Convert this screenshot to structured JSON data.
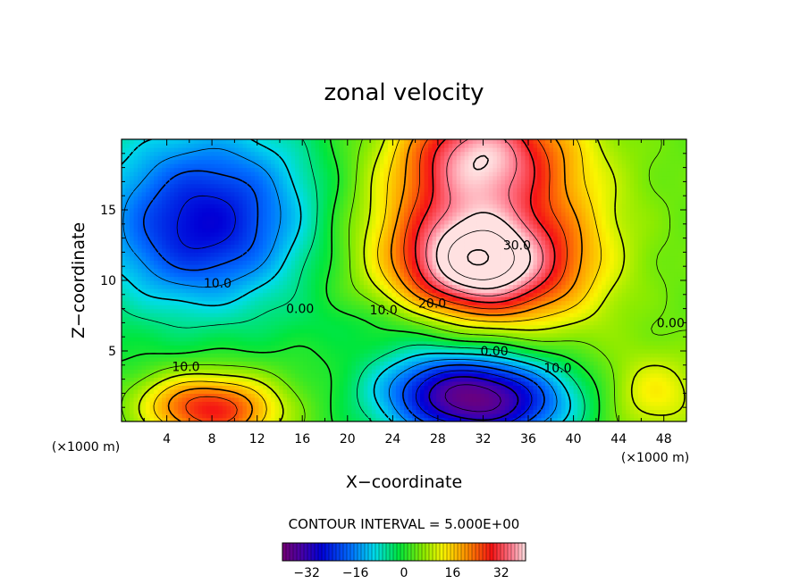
{
  "chart_data": {
    "type": "heatmap",
    "title": "zonal velocity",
    "xlabel": "X−coordinate",
    "ylabel": "Z−coordinate",
    "x_unit": "(×1000 m)",
    "y_unit": "(×1000 m)",
    "xlim": [
      0,
      50
    ],
    "ylim": [
      0,
      20
    ],
    "x_ticks": [
      4,
      8,
      12,
      16,
      20,
      24,
      28,
      32,
      36,
      40,
      44,
      48
    ],
    "y_ticks": [
      5,
      10,
      15
    ],
    "contour_interval_text": "CONTOUR INTERVAL = 5.000E+00",
    "contour_interval": 5.0,
    "colorbar": {
      "range": [
        -40,
        40
      ],
      "ticks": [
        -32,
        -16,
        0,
        16,
        32
      ],
      "tick_labels": [
        "−32",
        "−16",
        "0",
        "16",
        "32"
      ]
    },
    "contour_labels": [
      {
        "text": "10.0",
        "x": 8.5,
        "y": 9.8
      },
      {
        "text": "0.00",
        "x": 15.8,
        "y": 8.0
      },
      {
        "text": "10.0",
        "x": 23.2,
        "y": 7.9
      },
      {
        "text": "20.0",
        "x": 27.5,
        "y": 8.4
      },
      {
        "text": "30.0",
        "x": 35.0,
        "y": 12.5
      },
      {
        "text": "10.0",
        "x": 5.7,
        "y": 3.9
      },
      {
        "text": "0.00",
        "x": 33.0,
        "y": 5.0
      },
      {
        "text": "10.0",
        "x": 38.6,
        "y": 3.8
      },
      {
        "text": "0.00",
        "x": 48.6,
        "y": 7.0
      }
    ],
    "features": [
      {
        "name": "upper westerly jet",
        "x": 32,
        "y": 19,
        "sx": 5.0,
        "sy": 3.0,
        "value": 33
      },
      {
        "name": "mid-level westerly maximum",
        "x": 32,
        "y": 11.2,
        "sx": 5.0,
        "sy": 2.8,
        "value": 41
      },
      {
        "name": "westerly shoulder",
        "x": 26,
        "y": 14,
        "sx": 6.0,
        "sy": 4.0,
        "value": 10
      },
      {
        "name": "eastern positive flank",
        "x": 40,
        "y": 13,
        "sx": 4.0,
        "sy": 5.0,
        "value": 8
      },
      {
        "name": "upper easterly region",
        "x": 8,
        "y": 15,
        "sx": 7.0,
        "sy": 4.5,
        "value": -24
      },
      {
        "name": "easterly extension",
        "x": 6,
        "y": 12,
        "sx": 5.0,
        "sy": 3.0,
        "value": -6
      },
      {
        "name": "low-level easterly jet",
        "x": 32,
        "y": 1.5,
        "sx": 5.5,
        "sy": 2.2,
        "value": -38
      },
      {
        "name": "low-level easterly flank",
        "x": 27,
        "y": 3.0,
        "sx": 4.0,
        "sy": 2.0,
        "value": -8
      },
      {
        "name": "low-level westerly maximum",
        "x": 8.5,
        "y": 0.8,
        "sx": 4.0,
        "sy": 1.8,
        "value": 26
      },
      {
        "name": "low-level westerly extension",
        "x": 4,
        "y": 1.5,
        "sx": 3.0,
        "sy": 1.5,
        "value": 6
      },
      {
        "name": "weak easterly strip",
        "x": 24,
        "y": 7.0,
        "sx": 6.0,
        "sy": 1.3,
        "value": -4
      },
      {
        "name": "southeast positive patch",
        "x": 47,
        "y": 2,
        "sx": 3.0,
        "sy": 2.0,
        "value": 10
      }
    ]
  }
}
